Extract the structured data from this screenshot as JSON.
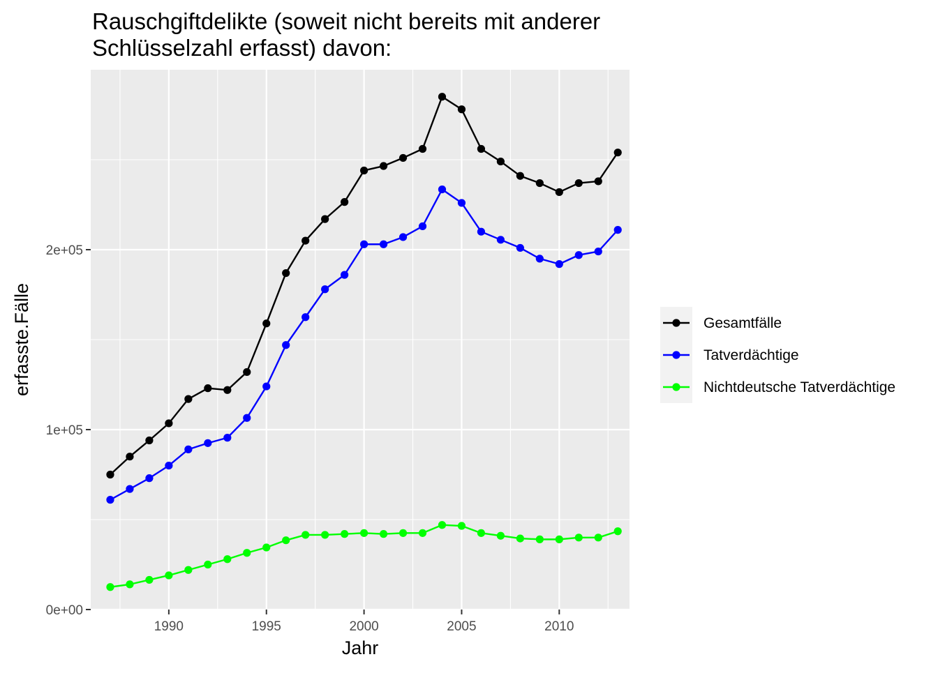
{
  "chart_data": {
    "type": "line",
    "title_lines": [
      "Rauschgiftdelikte (soweit nicht bereits mit anderer",
      "Schlüsselzahl erfasst) davon:"
    ],
    "xlabel": "Jahr",
    "ylabel": "erfasste.Fälle",
    "x": [
      1987,
      1988,
      1989,
      1990,
      1991,
      1992,
      1993,
      1994,
      1995,
      1996,
      1997,
      1998,
      1999,
      2000,
      2001,
      2002,
      2003,
      2004,
      2005,
      2006,
      2007,
      2008,
      2009,
      2010,
      2011,
      2012,
      2013
    ],
    "xlim": [
      1986,
      2013.6
    ],
    "ylim": [
      0,
      300000
    ],
    "x_ticks": [
      {
        "value": 1990,
        "label": "1990"
      },
      {
        "value": 1995,
        "label": "1995"
      },
      {
        "value": 2000,
        "label": "2000"
      },
      {
        "value": 2005,
        "label": "2005"
      },
      {
        "value": 2010,
        "label": "2010"
      }
    ],
    "y_ticks": [
      {
        "value": 0,
        "label": "0e+00"
      },
      {
        "value": 100000,
        "label": "1e+05"
      },
      {
        "value": 200000,
        "label": "2e+05"
      }
    ],
    "grid": true,
    "background": "#ebebeb",
    "legend_position": "right",
    "series": [
      {
        "name": "Gesamtfälle",
        "color": "#000000",
        "values": [
          75000,
          85000,
          94000,
          103500,
          117000,
          123000,
          122000,
          132000,
          159000,
          187000,
          205000,
          217000,
          226500,
          244000,
          246500,
          251000,
          256000,
          285000,
          278000,
          256000,
          249000,
          241000,
          237000,
          232000,
          237000,
          238000,
          254000
        ]
      },
      {
        "name": "Tatverdächtige",
        "color": "#0000ff",
        "values": [
          61000,
          67000,
          73000,
          80000,
          89000,
          92500,
          95500,
          106500,
          124000,
          147000,
          162500,
          178000,
          186000,
          203000,
          203000,
          207000,
          213000,
          233500,
          226000,
          210000,
          205500,
          201000,
          195000,
          192000,
          197000,
          199000,
          211000
        ]
      },
      {
        "name": "Nichtdeutsche Tatverdächtige",
        "color": "#00ff00",
        "values": [
          12500,
          14000,
          16500,
          19000,
          22000,
          25000,
          28000,
          31500,
          34500,
          38500,
          41500,
          41500,
          42000,
          42500,
          42000,
          42500,
          42500,
          47000,
          46500,
          42500,
          41000,
          39500,
          39000,
          39000,
          40000,
          40000,
          43500
        ]
      }
    ]
  }
}
